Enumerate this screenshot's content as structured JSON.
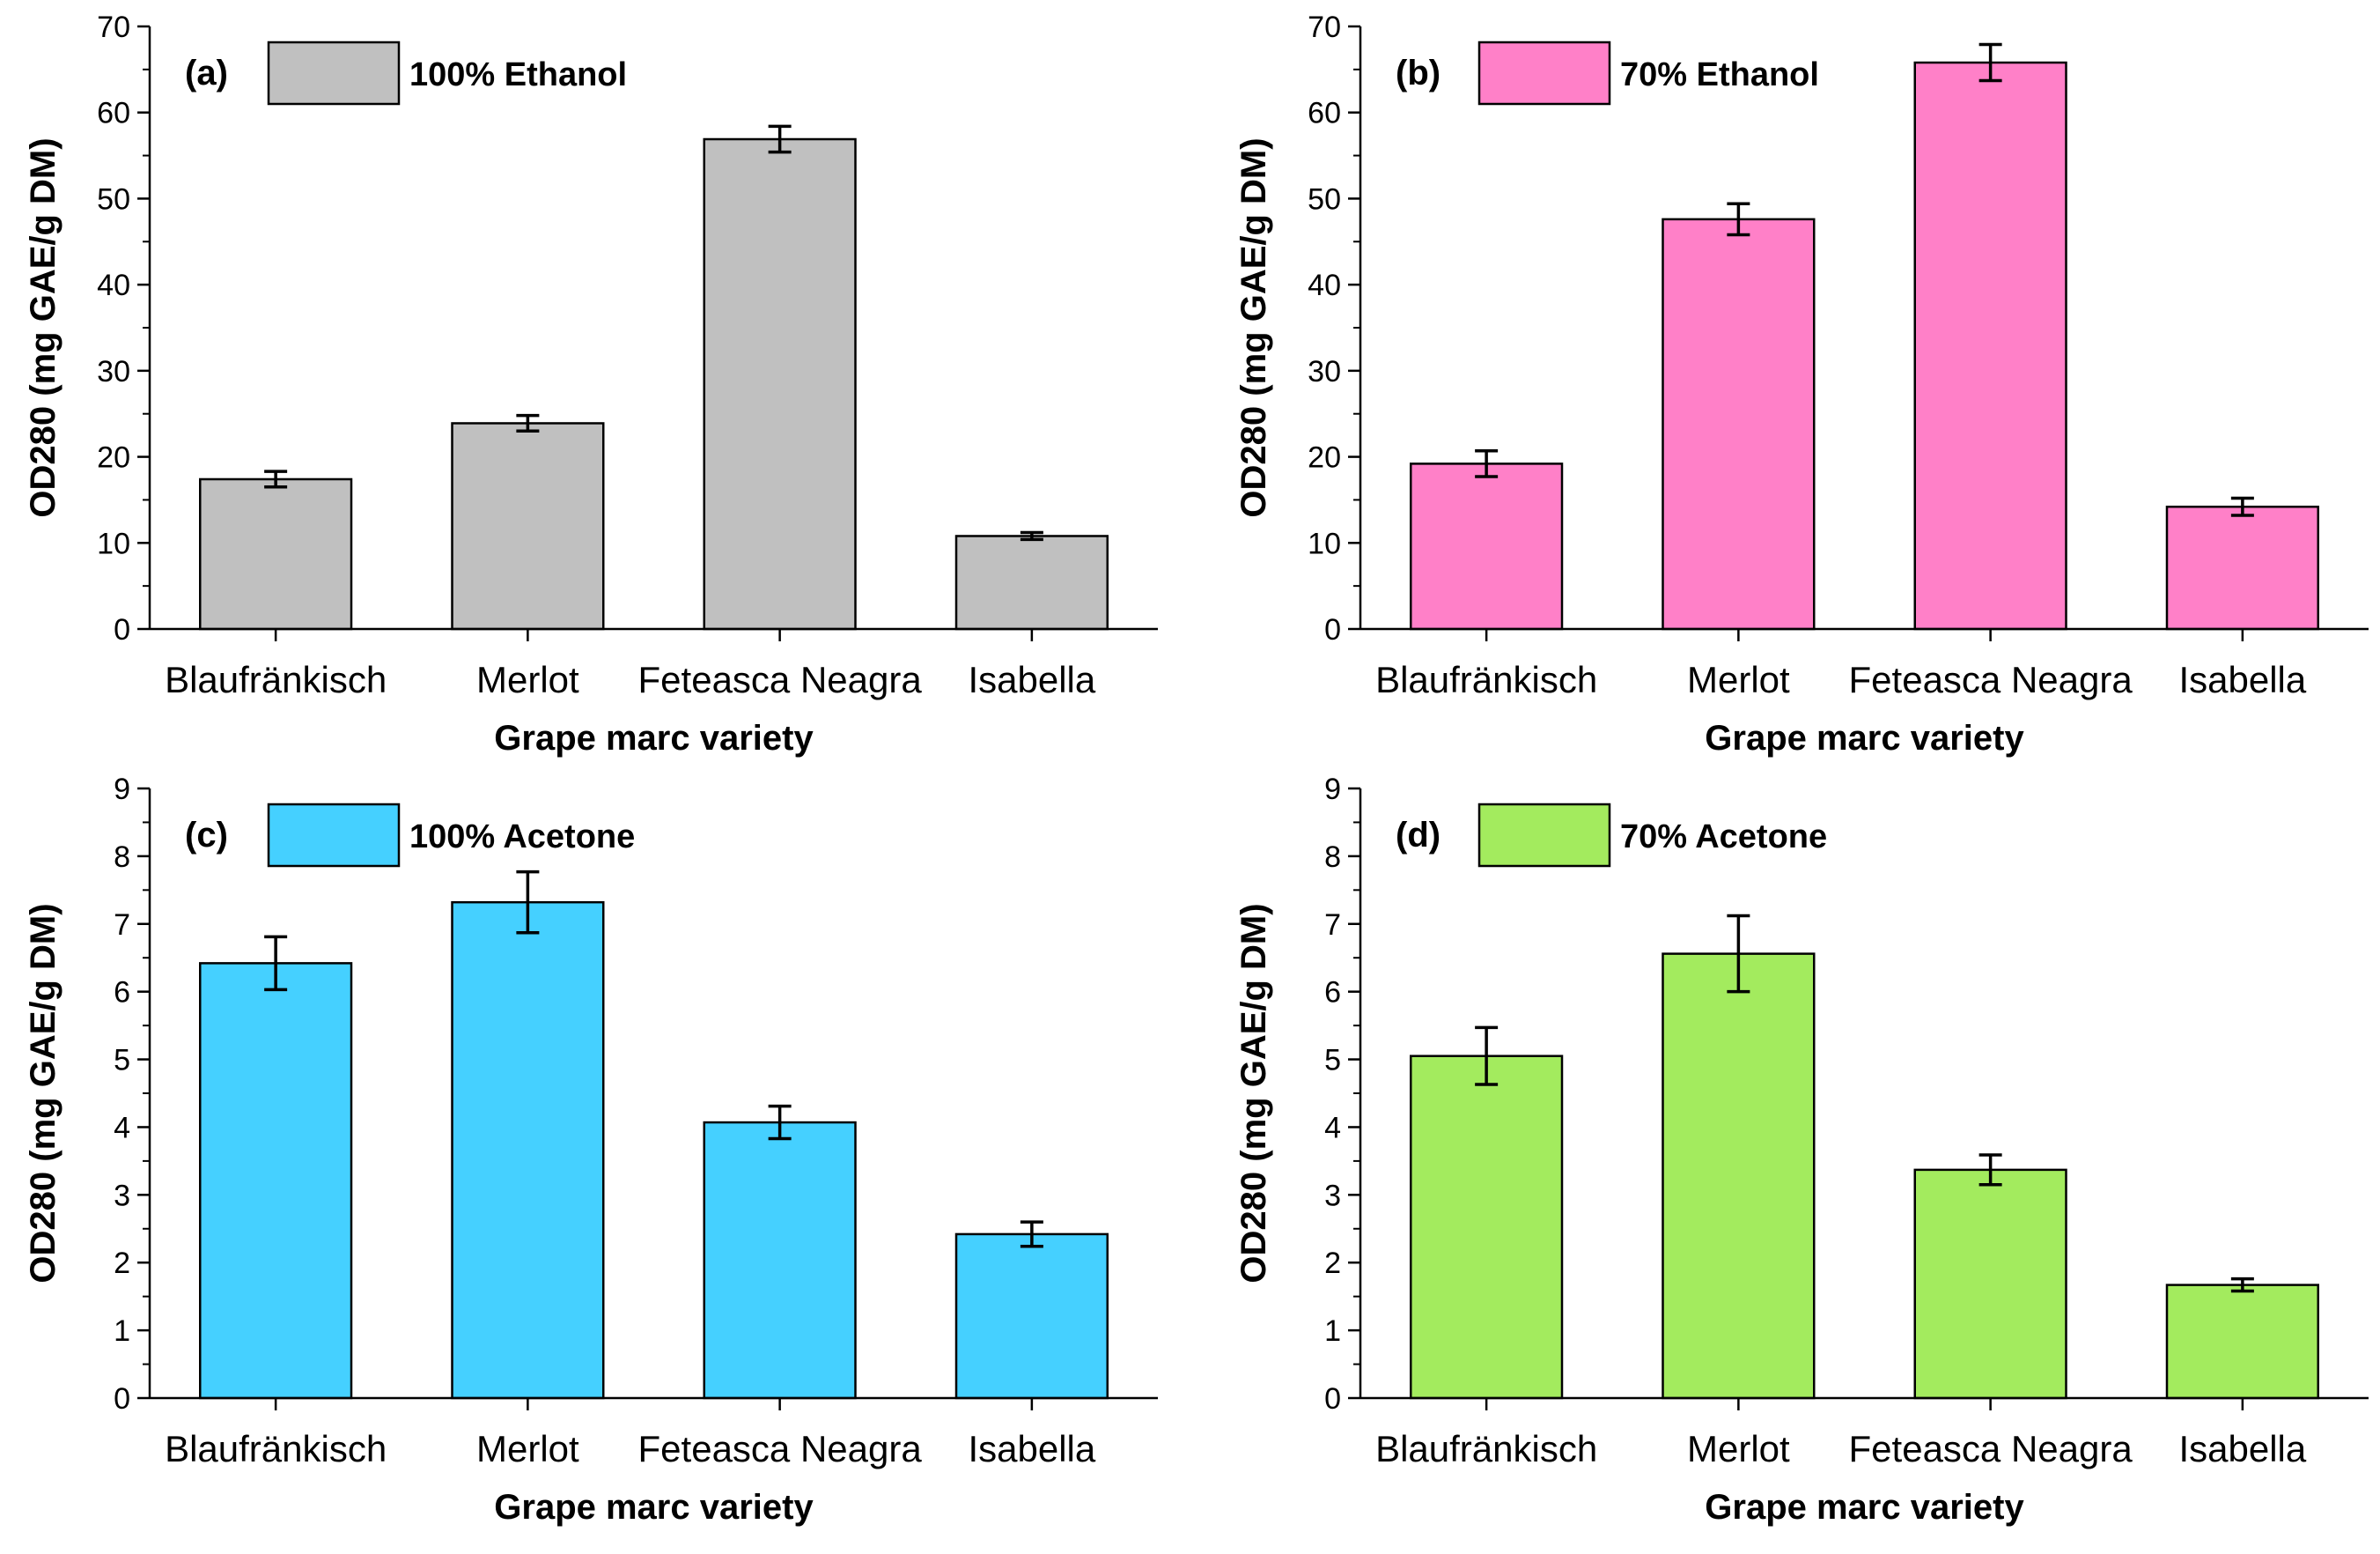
{
  "chart_data": [
    {
      "type": "bar",
      "panel": "(a)",
      "categories": [
        "Blaufränkisch",
        "Merlot",
        "Feteasca Neagra",
        "Isabella"
      ],
      "series": [
        {
          "name": "100% Ethanol",
          "values": [
            17.4,
            23.9,
            56.9,
            10.8
          ],
          "errors": [
            0.9,
            0.9,
            1.5,
            0.4
          ]
        }
      ],
      "ylabel": "OD280 (mg GAE/g DM)",
      "xlabel": "Grape marc variety",
      "ylim": [
        0,
        70
      ],
      "yticks": [
        0,
        10,
        20,
        30,
        40,
        50,
        60,
        70
      ],
      "color": "#c0c0c0",
      "legend": "top-left",
      "grid": false
    },
    {
      "type": "bar",
      "panel": "(b)",
      "categories": [
        "Blaufränkisch",
        "Merlot",
        "Feteasca Neagra",
        "Isabella"
      ],
      "series": [
        {
          "name": "70% Ethanol",
          "values": [
            19.2,
            47.6,
            65.8,
            14.2
          ],
          "errors": [
            1.5,
            1.8,
            2.1,
            1.0
          ]
        }
      ],
      "ylabel": "OD280 (mg GAE/g DM)",
      "xlabel": "Grape marc variety",
      "ylim": [
        0,
        70
      ],
      "yticks": [
        0,
        10,
        20,
        30,
        40,
        50,
        60,
        70
      ],
      "color": "#ff80c8",
      "legend": "top-left",
      "grid": false
    },
    {
      "type": "bar",
      "panel": "(c)",
      "categories": [
        "Blaufränkisch",
        "Merlot",
        "Feteasca Neagra",
        "Isabella"
      ],
      "series": [
        {
          "name": "100% Acetone",
          "values": [
            6.42,
            7.32,
            4.07,
            2.42
          ],
          "errors": [
            0.39,
            0.45,
            0.24,
            0.18
          ]
        }
      ],
      "ylabel": "OD280 (mg GAE/g DM)",
      "xlabel": "Grape marc variety",
      "ylim": [
        0,
        9
      ],
      "yticks": [
        0,
        1,
        2,
        3,
        4,
        5,
        6,
        7,
        8,
        9
      ],
      "color": "#45d0ff",
      "legend": "top-left",
      "grid": false
    },
    {
      "type": "bar",
      "panel": "(d)",
      "categories": [
        "Blaufränkisch",
        "Merlot",
        "Feteasca Neagra",
        "Isabella"
      ],
      "series": [
        {
          "name": "70% Acetone",
          "values": [
            5.05,
            6.56,
            3.37,
            1.67
          ],
          "errors": [
            0.42,
            0.56,
            0.22,
            0.09
          ]
        }
      ],
      "ylabel": "OD280 (mg GAE/g DM)",
      "xlabel": "Grape marc variety",
      "ylim": [
        0,
        9
      ],
      "yticks": [
        0,
        1,
        2,
        3,
        4,
        5,
        6,
        7,
        8,
        9
      ],
      "color": "#a3eb5e",
      "legend": "top-left",
      "grid": false
    }
  ]
}
